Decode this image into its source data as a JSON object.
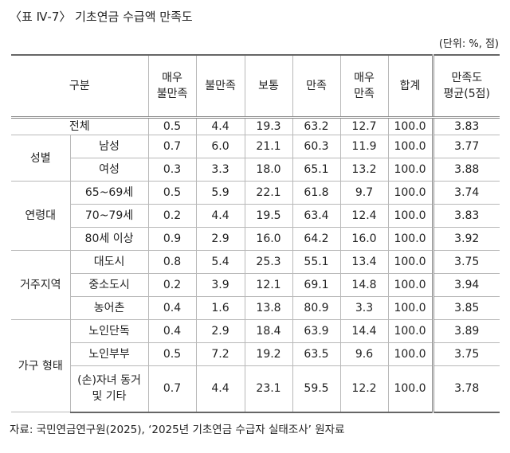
{
  "title": "〈표 Ⅳ-7〉 기초연금 수급액 만족도",
  "unit": "(단위: %, 점)",
  "table": {
    "header": [
      [
        "구분"
      ],
      [
        "매우",
        "불만족"
      ],
      [
        "불만족"
      ],
      [
        "보통"
      ],
      [
        "만족"
      ],
      [
        "매우",
        "만족"
      ],
      [
        "합계"
      ],
      [
        "만족도",
        "평균(5점)"
      ]
    ],
    "total": {
      "label": "전체",
      "values": [
        "0.5",
        "4.4",
        "19.3",
        "63.2",
        "12.7",
        "100.0",
        "3.83"
      ]
    },
    "groups": [
      {
        "label": "성별",
        "rows": [
          {
            "label": [
              "남성"
            ],
            "values": [
              "0.7",
              "6.0",
              "21.1",
              "60.3",
              "11.9",
              "100.0",
              "3.77"
            ]
          },
          {
            "label": [
              "여성"
            ],
            "values": [
              "0.3",
              "3.3",
              "18.0",
              "65.1",
              "13.2",
              "100.0",
              "3.88"
            ]
          }
        ]
      },
      {
        "label": "연령대",
        "rows": [
          {
            "label": [
              "65~69세"
            ],
            "values": [
              "0.5",
              "5.9",
              "22.1",
              "61.8",
              "9.7",
              "100.0",
              "3.74"
            ]
          },
          {
            "label": [
              "70~79세"
            ],
            "values": [
              "0.2",
              "4.4",
              "19.5",
              "63.4",
              "12.4",
              "100.0",
              "3.83"
            ]
          },
          {
            "label": [
              "80세 이상"
            ],
            "values": [
              "0.9",
              "2.9",
              "16.0",
              "64.2",
              "16.0",
              "100.0",
              "3.92"
            ]
          }
        ]
      },
      {
        "label": "거주지역",
        "rows": [
          {
            "label": [
              "대도시"
            ],
            "values": [
              "0.8",
              "5.4",
              "25.3",
              "55.1",
              "13.4",
              "100.0",
              "3.75"
            ]
          },
          {
            "label": [
              "중소도시"
            ],
            "values": [
              "0.2",
              "3.9",
              "12.1",
              "69.1",
              "14.8",
              "100.0",
              "3.94"
            ]
          },
          {
            "label": [
              "농어촌"
            ],
            "values": [
              "0.4",
              "1.6",
              "13.8",
              "80.9",
              "3.3",
              "100.0",
              "3.85"
            ]
          }
        ]
      },
      {
        "label": "가구 형태",
        "rows": [
          {
            "label": [
              "노인단독"
            ],
            "values": [
              "0.4",
              "2.9",
              "18.4",
              "63.9",
              "14.4",
              "100.0",
              "3.89"
            ]
          },
          {
            "label": [
              "노인부부"
            ],
            "values": [
              "0.5",
              "7.2",
              "19.2",
              "63.5",
              "9.6",
              "100.0",
              "3.75"
            ]
          },
          {
            "label": [
              "(손)자녀 동거",
              "및 기타"
            ],
            "values": [
              "0.7",
              "4.4",
              "23.1",
              "59.5",
              "12.2",
              "100.0",
              "3.78"
            ]
          }
        ]
      }
    ]
  },
  "source": "자료: 국민연금연구원(2025), ‘2025년 기초연금 수급자 실태조사’ 원자료"
}
